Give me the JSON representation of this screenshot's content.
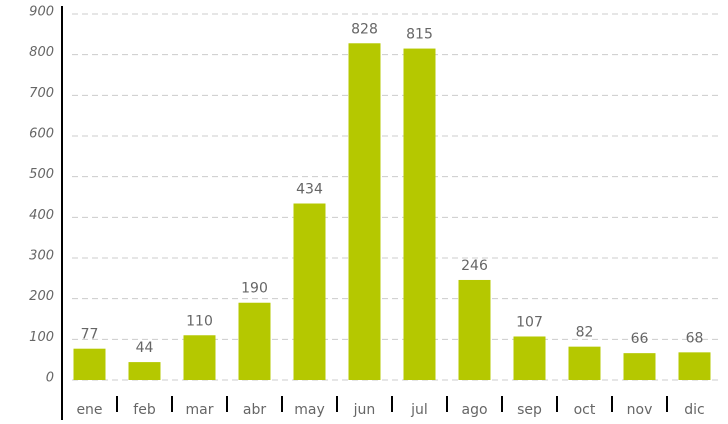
{
  "chart_data": {
    "type": "bar",
    "categories": [
      "ene",
      "feb",
      "mar",
      "abr",
      "may",
      "jun",
      "jul",
      "ago",
      "sep",
      "oct",
      "nov",
      "dic"
    ],
    "values": [
      77,
      44,
      110,
      190,
      434,
      828,
      815,
      246,
      107,
      82,
      66,
      68
    ],
    "color": "#b5c800",
    "ylim": [
      0,
      900
    ],
    "yticks": [
      0,
      100,
      200,
      300,
      400,
      500,
      600,
      700,
      800,
      900
    ],
    "grid": true
  }
}
